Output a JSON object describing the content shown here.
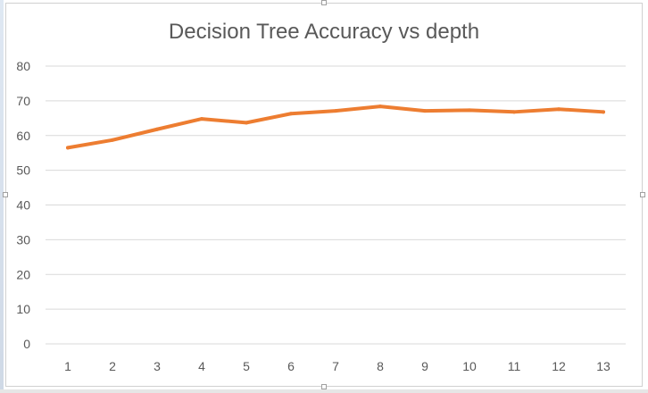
{
  "chart_data": {
    "type": "line",
    "title": "Decision Tree Accuracy vs depth",
    "xlabel": "",
    "ylabel": "",
    "categories": [
      "1",
      "2",
      "3",
      "4",
      "5",
      "6",
      "7",
      "8",
      "9",
      "10",
      "11",
      "12",
      "13"
    ],
    "series": [
      {
        "values": [
          56.5,
          58.7,
          61.8,
          64.8,
          63.7,
          66.3,
          67.1,
          68.4,
          67.1,
          67.3,
          66.8,
          67.6,
          66.8
        ]
      }
    ],
    "ylim": [
      0,
      80
    ],
    "yticks": [
      0,
      10,
      20,
      30,
      40,
      50,
      60,
      70,
      80
    ],
    "grid": true,
    "legend": "none",
    "colors": {
      "line": "#ed7d31",
      "grid": "#d9d9d9",
      "title": "#595959",
      "tick_label": "#595959"
    }
  }
}
